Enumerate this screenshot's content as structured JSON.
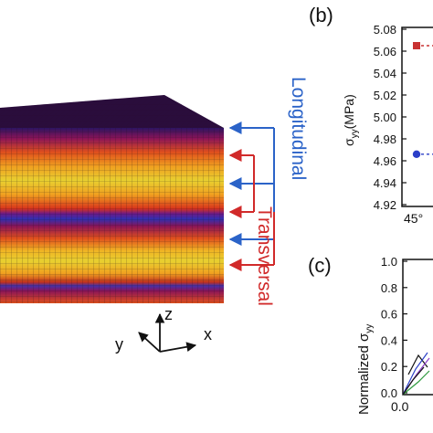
{
  "block": {
    "label_longitudinal": "Longitudinal",
    "label_transversal": "Transversal",
    "colors": {
      "longitudinal": "#2b63c8",
      "transversal": "#d12a2a"
    }
  },
  "axes_triad": {
    "z": "z",
    "y": "y",
    "x": "x"
  },
  "panel_b": {
    "label": "(b)",
    "ylabel_main": "σ",
    "ylabel_sub": "yy",
    "ylabel_unit": "(MPa)",
    "yticks": [
      "5.08",
      "5.06",
      "5.04",
      "5.02",
      "5.00",
      "4.98",
      "4.96",
      "4.94",
      "4.92"
    ],
    "xtick": "45°"
  },
  "panel_c": {
    "label": "(c)",
    "ylabel_prefix": "Normalized σ",
    "ylabel_sub": "yy",
    "yticks": [
      "1.0",
      "0.8",
      "0.6",
      "0.4",
      "0.2",
      "0.0"
    ],
    "xtick": "0.0"
  },
  "chart_data": [
    {
      "type": "scatter",
      "title": "",
      "ylabel": "σyy(MPa)",
      "ylim": [
        4.92,
        5.08
      ],
      "x": [
        "45°"
      ],
      "series": [
        {
          "color": "#c83232",
          "marker": "square",
          "values": [
            5.065
          ]
        },
        {
          "color": "#2b3fc8",
          "marker": "circle",
          "values": [
            4.966
          ]
        }
      ]
    },
    {
      "type": "line",
      "title": "",
      "ylabel": "Normalized σyy",
      "ylim": [
        0.0,
        1.0
      ],
      "x": [
        0.0
      ]
    }
  ]
}
